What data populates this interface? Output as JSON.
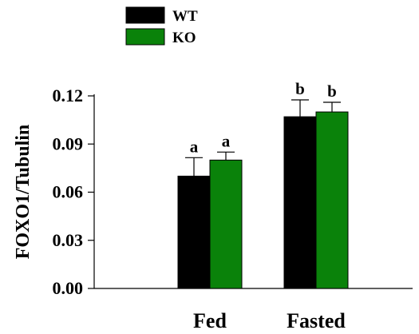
{
  "chart_data": {
    "type": "bar",
    "title": "",
    "xlabel": "",
    "ylabel": "FOXO1/Tubulin",
    "categories": [
      "Fed",
      "Fasted"
    ],
    "series": [
      {
        "name": "WT",
        "color": "#000000",
        "values": [
          0.07,
          0.107
        ],
        "errors": [
          0.0115,
          0.0105
        ],
        "labels": [
          "a",
          "b"
        ]
      },
      {
        "name": "KO",
        "color": "#0a820a",
        "values": [
          0.08,
          0.11
        ],
        "errors": [
          0.005,
          0.006
        ],
        "labels": [
          "a",
          "b"
        ]
      }
    ],
    "ylim": [
      0,
      0.12
    ],
    "yticks": [
      "0.00",
      "0.03",
      "0.06",
      "0.09",
      "0.12"
    ],
    "grid": false,
    "legend": "top-left"
  }
}
